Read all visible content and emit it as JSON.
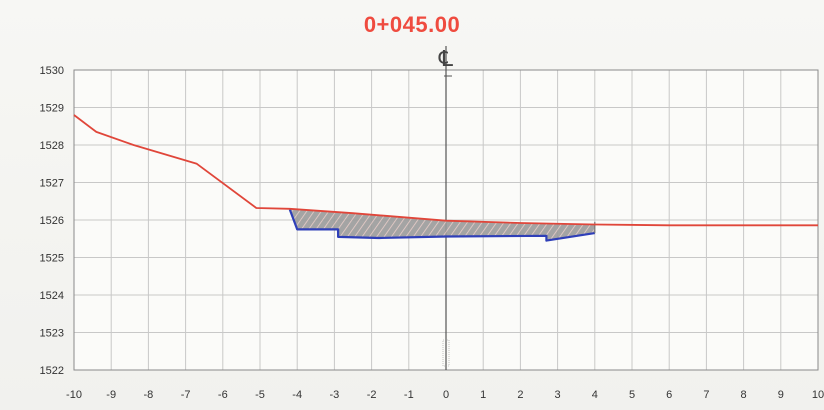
{
  "station_label": "0+045.00",
  "centerline_symbol": "℄",
  "colors": {
    "ground": "#e0463a",
    "design": "#2f3fb8",
    "fill": "#9a9a9a",
    "grid": "#c8c8c8",
    "station": "#ef4b3f"
  },
  "chart_data": {
    "type": "line",
    "title": "0+045.00",
    "xlim": [
      -10,
      10
    ],
    "ylim": [
      1522,
      1530
    ],
    "grid": true,
    "x_ticks": [
      "-10",
      "-9",
      "-8",
      "-7",
      "-6",
      "-5",
      "-4",
      "-3",
      "-2",
      "-1",
      "0",
      "1",
      "2",
      "3",
      "4",
      "5",
      "6",
      "7",
      "8",
      "9",
      "10"
    ],
    "y_ticks": [
      "1522",
      "1523",
      "1524",
      "1525",
      "1526",
      "1527",
      "1528",
      "1529",
      "1530"
    ],
    "series": [
      {
        "key": "ground",
        "points": [
          [
            -10,
            1528.8
          ],
          [
            -9.4,
            1528.35
          ],
          [
            -8.4,
            1528.0
          ],
          [
            -6.7,
            1527.5
          ],
          [
            -5.1,
            1526.32
          ],
          [
            -4.2,
            1526.3
          ],
          [
            -2.5,
            1526.18
          ],
          [
            0,
            1525.98
          ],
          [
            2,
            1525.92
          ],
          [
            4,
            1525.88
          ],
          [
            6,
            1525.86
          ],
          [
            8,
            1525.86
          ],
          [
            10,
            1525.86
          ]
        ]
      },
      {
        "key": "design",
        "points": [
          [
            -4.2,
            1526.28
          ],
          [
            -4.0,
            1525.75
          ],
          [
            -2.9,
            1525.75
          ],
          [
            -2.9,
            1525.55
          ],
          [
            -1.8,
            1525.52
          ],
          [
            0,
            1525.56
          ],
          [
            2.7,
            1525.58
          ],
          [
            2.7,
            1525.45
          ],
          [
            4,
            1525.65
          ]
        ]
      }
    ]
  }
}
